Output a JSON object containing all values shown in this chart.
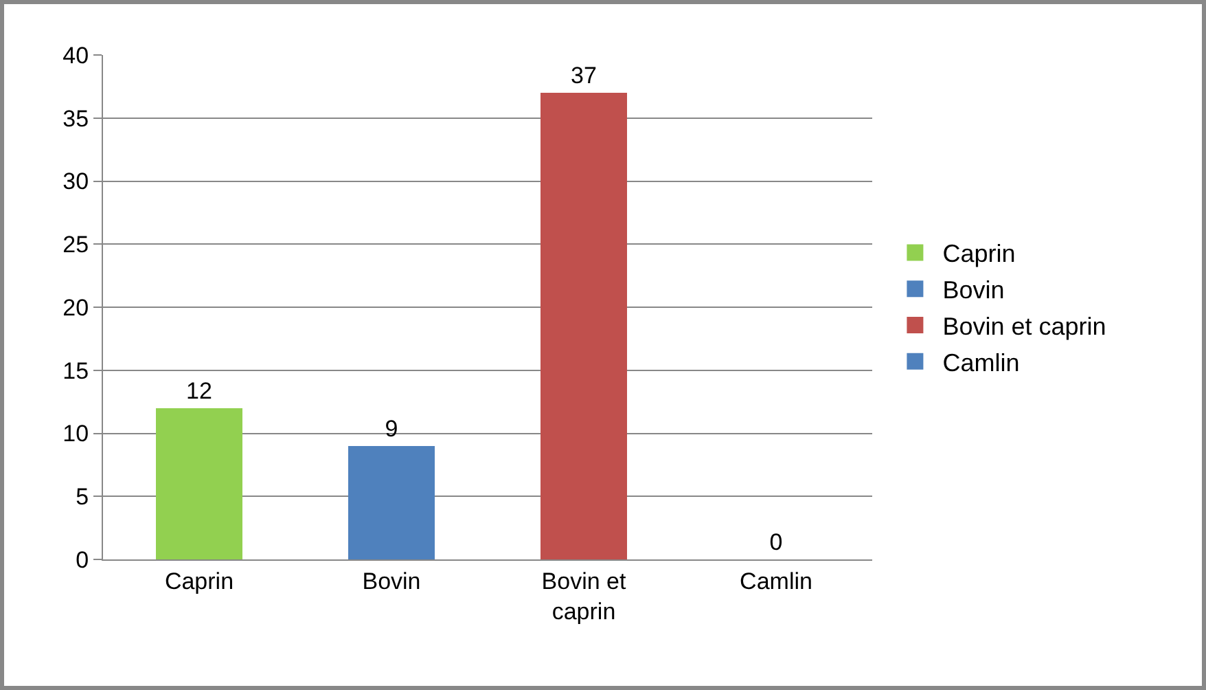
{
  "chart_data": {
    "type": "bar",
    "stacked": true,
    "categories": [
      "Caprin",
      "Bovin",
      "Bovin et caprin",
      "Camlin"
    ],
    "series": [
      {
        "name": "Caprin",
        "color": "#92d050",
        "values": [
          12,
          null,
          null,
          null
        ]
      },
      {
        "name": "Bovin",
        "color": "#4f81bd",
        "values": [
          null,
          9,
          null,
          null
        ]
      },
      {
        "name": "Bovin et caprin",
        "color": "#c0504d",
        "values": [
          null,
          null,
          37,
          null
        ]
      },
      {
        "name": "Camlin",
        "color": "#4f81bd",
        "values": [
          null,
          null,
          null,
          0
        ]
      }
    ],
    "ylim": [
      0,
      40
    ],
    "yticks": [
      0,
      5,
      10,
      15,
      20,
      25,
      30,
      35,
      40
    ],
    "grid": "y",
    "legend": "right",
    "data_labels": true
  }
}
